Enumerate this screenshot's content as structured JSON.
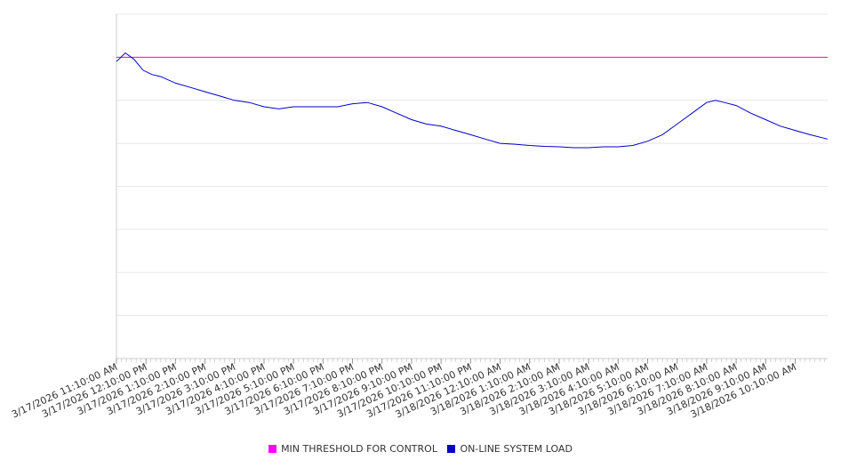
{
  "chart_data": {
    "type": "line",
    "title": "",
    "xlabel": "",
    "ylabel": "",
    "x_tick_labels": [
      "3/17/2026 11:10:00 AM",
      "3/17/2026 12:10:00 PM",
      "3/17/2026 1:10:00 PM",
      "3/17/2026 2:10:00 PM",
      "3/17/2026 3:10:00 PM",
      "3/17/2026 4:10:00 PM",
      "3/17/2026 5:10:00 PM",
      "3/17/2026 6:10:00 PM",
      "3/17/2026 7:10:00 PM",
      "3/17/2026 8:10:00 PM",
      "3/17/2026 9:10:00 PM",
      "3/17/2026 10:10:00 PM",
      "3/17/2026 11:10:00 PM",
      "3/18/2026 12:10:00 AM",
      "3/18/2026 1:10:00 AM",
      "3/18/2026 2:10:00 AM",
      "3/18/2026 3:10:00 AM",
      "3/18/2026 4:10:00 AM",
      "3/18/2026 5:10:00 AM",
      "3/18/2026 6:10:00 AM",
      "3/18/2026 7:10:00 AM",
      "3/18/2026 8:10:00 AM",
      "3/18/2026 9:10:00 AM",
      "3/18/2026 10:10:00 AM"
    ],
    "x_range_hours": [
      0,
      24.1
    ],
    "ylim": [
      0,
      8
    ],
    "y_gridlines": 8,
    "grid": true,
    "y_tick_labels_shown": false,
    "legend_position": "bottom-center",
    "series": [
      {
        "name": "MIN THRESHOLD FOR CONTROL",
        "color": "#ff00ff",
        "x": [
          0,
          24.1
        ],
        "y": [
          7.0,
          7.0
        ]
      },
      {
        "name": "ON-LINE SYSTEM LOAD",
        "color": "#0000cc",
        "x": [
          0,
          0.3,
          0.6,
          0.9,
          1.2,
          1.5,
          2.0,
          2.5,
          3.0,
          3.5,
          4.0,
          4.5,
          5.0,
          5.5,
          6.0,
          6.5,
          7.0,
          7.5,
          8.0,
          8.5,
          9.0,
          9.5,
          10.0,
          10.5,
          11.0,
          11.5,
          12.0,
          12.5,
          13.0,
          13.5,
          14.0,
          14.5,
          15.0,
          15.5,
          16.0,
          16.5,
          17.0,
          17.5,
          18.0,
          18.5,
          19.0,
          19.5,
          20.0,
          20.3,
          20.6,
          21.0,
          21.5,
          22.0,
          22.5,
          23.0,
          23.5,
          24.1
        ],
        "y": [
          6.9,
          7.1,
          6.95,
          6.7,
          6.6,
          6.55,
          6.4,
          6.3,
          6.2,
          6.1,
          6.0,
          5.95,
          5.85,
          5.8,
          5.85,
          5.85,
          5.85,
          5.85,
          5.92,
          5.95,
          5.85,
          5.7,
          5.55,
          5.45,
          5.4,
          5.3,
          5.2,
          5.1,
          5.0,
          4.98,
          4.95,
          4.93,
          4.92,
          4.9,
          4.9,
          4.92,
          4.92,
          4.95,
          5.05,
          5.2,
          5.45,
          5.7,
          5.95,
          6.0,
          5.95,
          5.88,
          5.7,
          5.55,
          5.4,
          5.3,
          5.2,
          5.1
        ]
      }
    ]
  }
}
